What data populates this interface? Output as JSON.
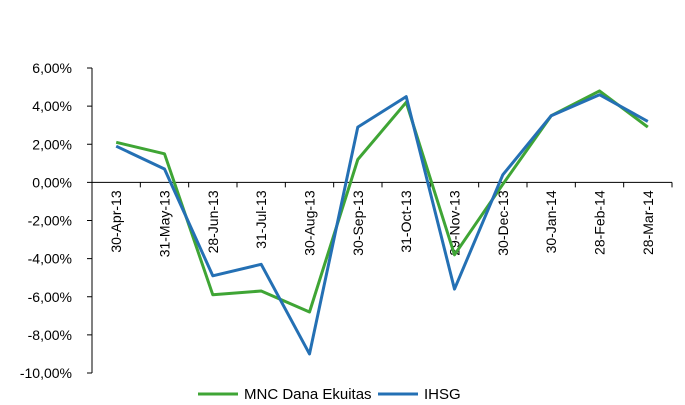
{
  "chart_data": {
    "type": "line",
    "categories": [
      "30-Apr-13",
      "31-May-13",
      "28-Jun-13",
      "31-Jul-13",
      "30-Aug-13",
      "30-Sep-13",
      "31-Oct-13",
      "29-Nov-13",
      "30-Dec-13",
      "30-Jan-14",
      "28-Feb-14",
      "28-Mar-14"
    ],
    "y_ticks": [
      "6,00%",
      "4,00%",
      "2,00%",
      "0,00%",
      "-2,00%",
      "-4,00%",
      "-6,00%",
      "-8,00%",
      "-10,00%"
    ],
    "ylim": [
      -10,
      6
    ],
    "y_unit": "%",
    "grid": false,
    "legend_position": "bottom",
    "series": [
      {
        "name": "MNC Dana Ekuitas",
        "color": "#3fa535",
        "values": [
          2.1,
          1.5,
          -5.9,
          -5.7,
          -6.8,
          1.2,
          4.2,
          -3.8,
          -0.1,
          3.5,
          4.8,
          2.9
        ]
      },
      {
        "name": "IHSG",
        "color": "#2470b4",
        "values": [
          1.9,
          0.7,
          -4.9,
          -4.3,
          -9.0,
          2.9,
          4.5,
          -5.6,
          0.4,
          3.5,
          4.6,
          3.2
        ]
      }
    ]
  }
}
